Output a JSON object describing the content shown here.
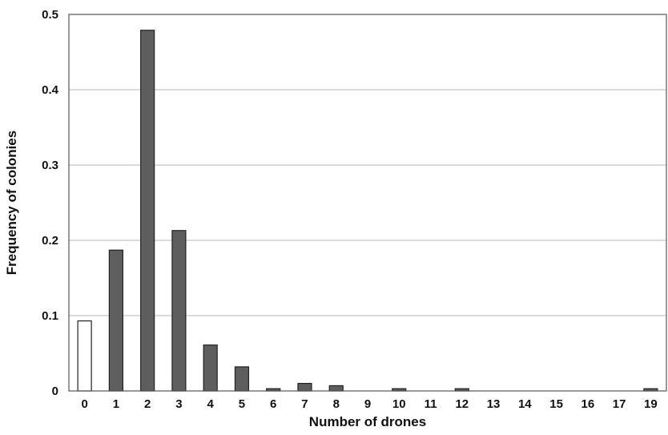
{
  "chart_data": {
    "type": "bar",
    "categories": [
      "0",
      "1",
      "2",
      "3",
      "4",
      "5",
      "6",
      "7",
      "8",
      "9",
      "10",
      "11",
      "12",
      "13",
      "14",
      "15",
      "16",
      "17",
      "19"
    ],
    "values": [
      0.093,
      0.187,
      0.479,
      0.213,
      0.061,
      0.032,
      0.003,
      0.01,
      0.007,
      0.0,
      0.003,
      0.0,
      0.003,
      0.0,
      0.0,
      0.0,
      0.0,
      0.0,
      0.003
    ],
    "highlight": {
      "category": "0",
      "color": "#ffffff"
    },
    "bar_color": "#5e5e5e",
    "xlabel": "Number of drones",
    "ylabel": "Frequency of colonies",
    "ylim": [
      0,
      0.5
    ],
    "yticks": [
      "0",
      "0.1",
      "0.2",
      "0.3",
      "0.4",
      "0.5"
    ],
    "grid": true
  }
}
